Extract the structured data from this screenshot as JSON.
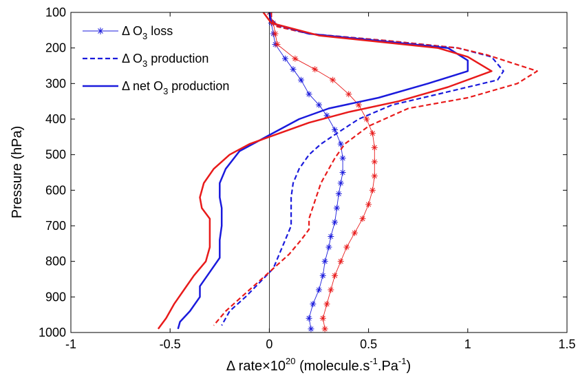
{
  "chart_data": {
    "type": "line",
    "title": "",
    "xlabel": {
      "prefix": "Δ rate×10",
      "exp": "20",
      "mid": " (molecule.s",
      "exp2": "-1",
      "mid2": ".Pa",
      "exp3": "-1",
      "suffix": ")"
    },
    "ylabel": "Pressure (hPa)",
    "xlim": [
      -1,
      1.5
    ],
    "ylim": [
      100,
      1000
    ],
    "y_reversed": true,
    "x_ticks": [
      -1,
      -0.5,
      0,
      0.5,
      1,
      1.5
    ],
    "x_tick_labels": [
      "-1",
      "-0.5",
      "0",
      "0.5",
      "1",
      "1.5"
    ],
    "y_ticks": [
      100,
      200,
      300,
      400,
      500,
      600,
      700,
      800,
      900,
      1000
    ],
    "y_tick_labels": [
      "100",
      "200",
      "300",
      "400",
      "500",
      "600",
      "700",
      "800",
      "900",
      "1000"
    ],
    "zero_line_x": 0,
    "grid": false,
    "legend": {
      "placement": "top-left",
      "entries": [
        {
          "pre": "Δ O",
          "sub": "3",
          "post": " loss",
          "style": "marker-star"
        },
        {
          "pre": "Δ O",
          "sub": "3",
          "post": " production",
          "style": "dashed"
        },
        {
          "pre": "Δ net O",
          "sub": "3",
          "post": " production",
          "style": "solid"
        }
      ]
    },
    "colors": {
      "blue": "#1a1adc",
      "red": "#e81a1a"
    },
    "series": [
      {
        "color": "blue",
        "style": "marker-star",
        "points": [
          [
            0,
            100
          ],
          [
            0.01,
            130
          ],
          [
            0.02,
            160
          ],
          [
            0.03,
            190
          ],
          [
            0.08,
            230
          ],
          [
            0.12,
            260
          ],
          [
            0.16,
            290
          ],
          [
            0.2,
            330
          ],
          [
            0.25,
            360
          ],
          [
            0.29,
            390
          ],
          [
            0.33,
            430
          ],
          [
            0.36,
            470
          ],
          [
            0.37,
            510
          ],
          [
            0.37,
            550
          ],
          [
            0.36,
            580
          ],
          [
            0.35,
            610
          ],
          [
            0.34,
            650
          ],
          [
            0.33,
            690
          ],
          [
            0.31,
            730
          ],
          [
            0.3,
            760
          ],
          [
            0.28,
            800
          ],
          [
            0.27,
            840
          ],
          [
            0.25,
            880
          ],
          [
            0.22,
            920
          ],
          [
            0.2,
            960
          ],
          [
            0.21,
            990
          ]
        ]
      },
      {
        "color": "red",
        "style": "marker-star",
        "points": [
          [
            0,
            100
          ],
          [
            0.02,
            130
          ],
          [
            0.03,
            160
          ],
          [
            0.04,
            190
          ],
          [
            0.13,
            230
          ],
          [
            0.23,
            260
          ],
          [
            0.32,
            290
          ],
          [
            0.4,
            330
          ],
          [
            0.45,
            360
          ],
          [
            0.49,
            400
          ],
          [
            0.52,
            440
          ],
          [
            0.53,
            480
          ],
          [
            0.53,
            520
          ],
          [
            0.53,
            560
          ],
          [
            0.52,
            600
          ],
          [
            0.5,
            640
          ],
          [
            0.47,
            680
          ],
          [
            0.43,
            720
          ],
          [
            0.39,
            760
          ],
          [
            0.36,
            800
          ],
          [
            0.33,
            840
          ],
          [
            0.31,
            880
          ],
          [
            0.29,
            920
          ],
          [
            0.27,
            960
          ],
          [
            0.28,
            990
          ]
        ]
      },
      {
        "color": "blue",
        "style": "dashed",
        "points": [
          [
            0.01,
            100
          ],
          [
            0.01,
            120
          ],
          [
            0.05,
            140
          ],
          [
            0.2,
            160
          ],
          [
            0.6,
            180
          ],
          [
            0.95,
            200
          ],
          [
            1.12,
            225
          ],
          [
            1.18,
            265
          ],
          [
            1.15,
            290
          ],
          [
            0.85,
            330
          ],
          [
            0.62,
            360
          ],
          [
            0.45,
            400
          ],
          [
            0.34,
            440
          ],
          [
            0.26,
            470
          ],
          [
            0.2,
            500
          ],
          [
            0.15,
            540
          ],
          [
            0.12,
            580
          ],
          [
            0.11,
            620
          ],
          [
            0.11,
            700
          ],
          [
            0.08,
            740
          ],
          [
            0.05,
            780
          ],
          [
            0.02,
            820
          ],
          [
            -0.05,
            860
          ],
          [
            -0.12,
            900
          ],
          [
            -0.2,
            940
          ],
          [
            -0.24,
            980
          ]
        ]
      },
      {
        "color": "red",
        "style": "dashed",
        "points": [
          [
            0.01,
            100
          ],
          [
            0.01,
            120
          ],
          [
            0.04,
            140
          ],
          [
            0.2,
            160
          ],
          [
            0.6,
            180
          ],
          [
            0.95,
            200
          ],
          [
            1.1,
            220
          ],
          [
            1.35,
            265
          ],
          [
            1.25,
            300
          ],
          [
            1.0,
            340
          ],
          [
            0.7,
            370
          ],
          [
            0.5,
            420
          ],
          [
            0.38,
            470
          ],
          [
            0.33,
            510
          ],
          [
            0.3,
            540
          ],
          [
            0.26,
            580
          ],
          [
            0.23,
            630
          ],
          [
            0.2,
            680
          ],
          [
            0.2,
            710
          ],
          [
            0.16,
            740
          ],
          [
            0.1,
            780
          ],
          [
            0.02,
            820
          ],
          [
            -0.06,
            860
          ],
          [
            -0.14,
            900
          ],
          [
            -0.22,
            940
          ],
          [
            -0.28,
            980
          ]
        ]
      },
      {
        "color": "blue",
        "style": "solid",
        "points": [
          [
            0,
            100
          ],
          [
            0.01,
            130
          ],
          [
            0.2,
            160
          ],
          [
            0.9,
            200
          ],
          [
            1.0,
            235
          ],
          [
            1.0,
            265
          ],
          [
            0.8,
            300
          ],
          [
            0.55,
            340
          ],
          [
            0.3,
            370
          ],
          [
            0.15,
            400
          ],
          [
            0.05,
            430
          ],
          [
            -0.05,
            460
          ],
          [
            -0.15,
            490
          ],
          [
            -0.22,
            540
          ],
          [
            -0.25,
            580
          ],
          [
            -0.25,
            620
          ],
          [
            -0.24,
            650
          ],
          [
            -0.24,
            700
          ],
          [
            -0.25,
            740
          ],
          [
            -0.25,
            790
          ],
          [
            -0.3,
            830
          ],
          [
            -0.35,
            870
          ],
          [
            -0.35,
            900
          ],
          [
            -0.4,
            940
          ],
          [
            -0.45,
            970
          ],
          [
            -0.46,
            990
          ]
        ]
      },
      {
        "color": "red",
        "style": "solid",
        "points": [
          [
            -0.03,
            100
          ],
          [
            0.01,
            130
          ],
          [
            0.25,
            165
          ],
          [
            0.85,
            200
          ],
          [
            1.0,
            225
          ],
          [
            1.12,
            265
          ],
          [
            0.9,
            310
          ],
          [
            0.65,
            350
          ],
          [
            0.4,
            380
          ],
          [
            0.2,
            410
          ],
          [
            0.05,
            440
          ],
          [
            -0.1,
            470
          ],
          [
            -0.2,
            500
          ],
          [
            -0.28,
            540
          ],
          [
            -0.33,
            580
          ],
          [
            -0.35,
            620
          ],
          [
            -0.34,
            650
          ],
          [
            -0.3,
            680
          ],
          [
            -0.3,
            720
          ],
          [
            -0.3,
            760
          ],
          [
            -0.32,
            800
          ],
          [
            -0.38,
            840
          ],
          [
            -0.43,
            880
          ],
          [
            -0.48,
            920
          ],
          [
            -0.52,
            960
          ],
          [
            -0.56,
            990
          ]
        ]
      }
    ]
  }
}
